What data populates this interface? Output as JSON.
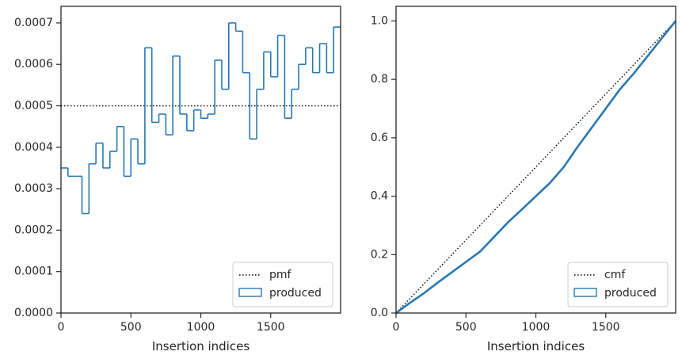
{
  "colors": {
    "series": "#2878b5",
    "reference": "#000000",
    "axis": "#262626"
  },
  "chart_data": [
    {
      "type": "histogram",
      "xlabel": "Insertion indices",
      "ylabel": "",
      "xlim": [
        0,
        2000
      ],
      "ylim": [
        0,
        0.00074
      ],
      "xticks": [
        0,
        500,
        1000,
        1500
      ],
      "xtick_labels": [
        "0",
        "500",
        "1000",
        "1500"
      ],
      "yticks": [
        0,
        0.0001,
        0.0002,
        0.0003,
        0.0004,
        0.0005,
        0.0006,
        0.0007
      ],
      "ytick_labels": [
        "0.0000",
        "0.0001",
        "0.0002",
        "0.0003",
        "0.0004",
        "0.0005",
        "0.0006",
        "0.0007"
      ],
      "bin_width": 50,
      "bin_edges_start": 0,
      "values": [
        0.00035,
        0.00033,
        0.00033,
        0.00024,
        0.00036,
        0.00041,
        0.00035,
        0.00039,
        0.00045,
        0.00033,
        0.00042,
        0.00036,
        0.00064,
        0.00046,
        0.00048,
        0.00043,
        0.00062,
        0.00048,
        0.00044,
        0.00049,
        0.00047,
        0.00048,
        0.00061,
        0.00054,
        0.0007,
        0.00068,
        0.00058,
        0.00042,
        0.00054,
        0.00063,
        0.00057,
        0.00067,
        0.00047,
        0.00054,
        0.0006,
        0.00064,
        0.00058,
        0.00065,
        0.00058,
        0.00069
      ],
      "reference_line": {
        "y": 0.0005
      },
      "legend": {
        "position": "bottom-right",
        "entries": [
          "pmf",
          "produced"
        ]
      }
    },
    {
      "type": "line",
      "xlabel": "Insertion indices",
      "ylabel": "",
      "xlim": [
        0,
        2000
      ],
      "ylim": [
        0,
        1.05
      ],
      "xticks": [
        0,
        500,
        1000,
        1500
      ],
      "xtick_labels": [
        "0",
        "500",
        "1000",
        "1500"
      ],
      "yticks": [
        0,
        0.2,
        0.4,
        0.6,
        0.8,
        1.0
      ],
      "ytick_labels": [
        "0.0",
        "0.2",
        "0.4",
        "0.6",
        "0.8",
        "1.0"
      ],
      "reference_line": {
        "x": [
          0,
          2000
        ],
        "y": [
          0,
          1.0
        ]
      },
      "series": [
        {
          "x": [
            0,
            100,
            200,
            300,
            400,
            500,
            600,
            700,
            800,
            900,
            1000,
            1100,
            1200,
            1300,
            1400,
            1500,
            1600,
            1700,
            1800,
            1900,
            2000
          ],
          "y": [
            0,
            0.035,
            0.068,
            0.105,
            0.14,
            0.175,
            0.21,
            0.26,
            0.31,
            0.355,
            0.4,
            0.445,
            0.5,
            0.57,
            0.635,
            0.7,
            0.765,
            0.82,
            0.88,
            0.94,
            1.0
          ]
        }
      ],
      "legend": {
        "position": "bottom-right",
        "entries": [
          "cmf",
          "produced"
        ]
      }
    }
  ]
}
